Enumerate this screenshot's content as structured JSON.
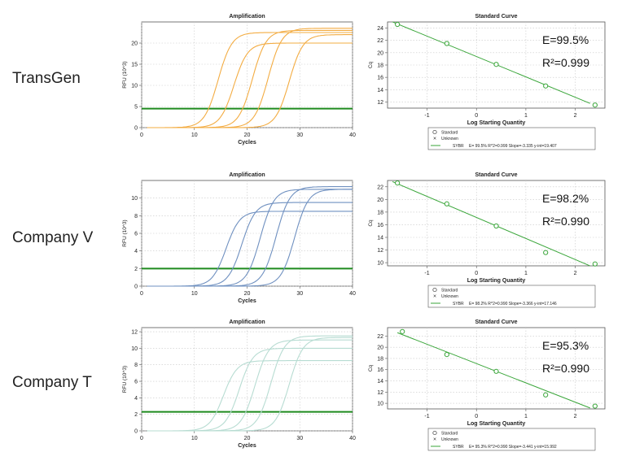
{
  "rows": [
    {
      "label": "TransGen"
    },
    {
      "label": "Company V"
    },
    {
      "label": "Company T"
    }
  ],
  "colors": {
    "transgen": "#f3ac42",
    "company_v": "#6f90c0",
    "company_t": "#b7dcd2",
    "threshold": "#1e8a1e",
    "standard": "#3aa63a"
  },
  "chart_data": [
    {
      "type": "line",
      "title": "Amplification",
      "xlabel": "Cycles",
      "ylabel": "RFU (10^3)",
      "xlim": [
        0,
        40
      ],
      "ylim": [
        0,
        25
      ],
      "xticks": [
        0,
        10,
        20,
        30,
        40
      ],
      "yticks": [
        0,
        5,
        10,
        15,
        20
      ],
      "grid": true,
      "threshold": 4.5,
      "series": [
        {
          "ct": 11.5,
          "plateau": 22.5
        },
        {
          "ct": 14.5,
          "plateau": 20.0
        },
        {
          "ct": 18.0,
          "plateau": 23.0
        },
        {
          "ct": 21.0,
          "plateau": 23.5
        },
        {
          "ct": 25.0,
          "plateau": 22.0
        }
      ]
    },
    {
      "type": "scatter",
      "title": "Standard Curve",
      "xlabel": "Log Starting Quantity",
      "ylabel": "Cq",
      "xlim": [
        -1.8,
        2.6
      ],
      "ylim": [
        11,
        25
      ],
      "xticks": [
        -1,
        0,
        1,
        2
      ],
      "yticks": [
        12,
        14,
        16,
        18,
        20,
        22,
        24
      ],
      "grid": true,
      "points": [
        {
          "x": -1.6,
          "y": 24.6
        },
        {
          "x": -0.6,
          "y": 21.5
        },
        {
          "x": 0.4,
          "y": 18.1
        },
        {
          "x": 1.4,
          "y": 14.6
        },
        {
          "x": 2.4,
          "y": 11.5
        }
      ],
      "fit": {
        "slope": -3.335,
        "intercept": 19.407
      },
      "annotation_e": "E=99.5%",
      "annotation_r2": "R²=0.999",
      "legend": [
        "Standard",
        "Unknown"
      ],
      "legend_line_label": "SYBR",
      "legend_stats": "E= 99.5% R^2=0.999 Slope=-3.335 y-int=19.407"
    },
    {
      "type": "line",
      "title": "Amplification",
      "xlabel": "Cycles",
      "ylabel": "RFU (10^3)",
      "xlim": [
        0,
        40
      ],
      "ylim": [
        0,
        12
      ],
      "xticks": [
        0,
        10,
        20,
        30,
        40
      ],
      "yticks": [
        0,
        2,
        4,
        6,
        8,
        10
      ],
      "grid": true,
      "threshold": 2.0,
      "series": [
        {
          "ct": 13.0,
          "plateau": 8.5
        },
        {
          "ct": 16.0,
          "plateau": 9.5
        },
        {
          "ct": 19.5,
          "plateau": 11.0
        },
        {
          "ct": 22.5,
          "plateau": 11.3
        },
        {
          "ct": 26.0,
          "plateau": 11.0
        }
      ]
    },
    {
      "type": "scatter",
      "title": "Standard Curve",
      "xlabel": "Log Starting Quantity",
      "ylabel": "Cq",
      "xlim": [
        -1.8,
        2.6
      ],
      "ylim": [
        9.5,
        23
      ],
      "xticks": [
        -1,
        0,
        1,
        2
      ],
      "yticks": [
        10,
        12,
        14,
        16,
        18,
        20,
        22
      ],
      "grid": true,
      "points": [
        {
          "x": -1.6,
          "y": 22.6
        },
        {
          "x": -0.6,
          "y": 19.3
        },
        {
          "x": 0.4,
          "y": 15.8
        },
        {
          "x": 1.4,
          "y": 11.6
        },
        {
          "x": 2.4,
          "y": 9.8
        }
      ],
      "fit": {
        "slope": -3.366,
        "intercept": 17.146
      },
      "annotation_e": "E=98.2%",
      "annotation_r2": "R²=0.990",
      "legend": [
        "Standard",
        "Unknown"
      ],
      "legend_line_label": "SYBR",
      "legend_stats": "E= 98.2% R^2=0.990 Slope=-3.366 y-int=17.146"
    },
    {
      "type": "line",
      "title": "Amplification",
      "xlabel": "Cycles",
      "ylabel": "RFU (10^3)",
      "xlim": [
        0,
        40
      ],
      "ylim": [
        0,
        12.5
      ],
      "xticks": [
        0,
        10,
        20,
        30,
        40
      ],
      "yticks": [
        0,
        2,
        4,
        6,
        8,
        10,
        12
      ],
      "grid": true,
      "threshold": 2.3,
      "series": [
        {
          "ct": 12.5,
          "plateau": 8.5
        },
        {
          "ct": 15.5,
          "plateau": 10.0
        },
        {
          "ct": 18.5,
          "plateau": 11.0
        },
        {
          "ct": 21.5,
          "plateau": 11.5
        },
        {
          "ct": 25.0,
          "plateau": 11.3
        }
      ]
    },
    {
      "type": "scatter",
      "title": "Standard Curve",
      "xlabel": "Log Starting Quantity",
      "ylabel": "Cq",
      "xlim": [
        -1.8,
        2.6
      ],
      "ylim": [
        9,
        23.5
      ],
      "xticks": [
        -1,
        0,
        1,
        2
      ],
      "yticks": [
        10,
        12,
        14,
        16,
        18,
        20,
        22
      ],
      "grid": true,
      "points": [
        {
          "x": -1.5,
          "y": 22.8
        },
        {
          "x": -0.6,
          "y": 18.7
        },
        {
          "x": 0.4,
          "y": 15.7
        },
        {
          "x": 1.4,
          "y": 11.5
        },
        {
          "x": 2.4,
          "y": 9.5
        }
      ],
      "fit": {
        "slope": -3.441,
        "intercept": 15.992
      },
      "annotation_e": "E=95.3%",
      "annotation_r2": "R²=0.990",
      "legend": [
        "Standard",
        "Unknown"
      ],
      "legend_line_label": "SYBR",
      "legend_stats": "E= 95.3% R^2=0.990 Slope=-3.441 y-int=15.992"
    }
  ]
}
